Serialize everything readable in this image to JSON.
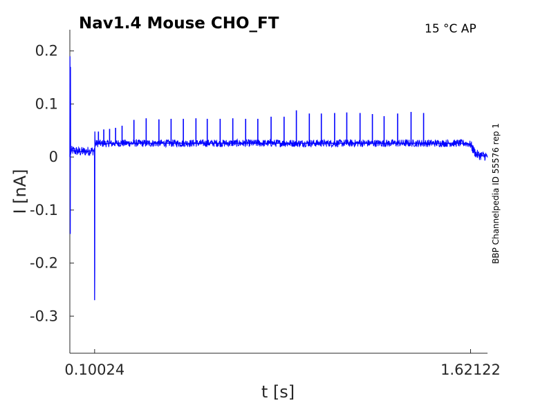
{
  "chart_data": {
    "type": "line",
    "title": "Nav1.4  Mouse  CHO_FT",
    "temperature_label": "15 °C  AP",
    "side_label": "BBP Channelpedia ID 55576 rep 1",
    "xlabel": "t [s]",
    "ylabel": "I [nA]",
    "xlim": [
      0.0,
      1.6898
    ],
    "ylim": [
      -0.37,
      0.24
    ],
    "x_ticks": [
      0.10024,
      1.62122
    ],
    "x_tick_labels": [
      "0.10024",
      "1.62122"
    ],
    "y_ticks": [
      0.2,
      0.1,
      0,
      -0.1,
      -0.2,
      -0.3
    ],
    "y_tick_labels": [
      "0.2",
      "0.1",
      "0",
      "-0.1",
      "-0.2",
      "-0.3"
    ],
    "series": [
      {
        "color": "#0000ff",
        "x": [
          0.0,
          0.0006,
          0.0012,
          0.0018,
          0.0024,
          0.003,
          0.0036,
          0.0042,
          0.012,
          0.045,
          0.0995,
          0.1002,
          0.1006,
          0.101,
          0.1014,
          0.1018,
          0.1022,
          0.1026,
          0.103,
          0.104,
          0.108,
          0.115,
          0.12,
          0.13,
          0.14,
          0.15,
          0.16,
          0.17,
          0.18,
          0.2,
          0.25,
          0.3,
          0.35,
          0.4,
          0.45,
          0.5,
          0.55,
          0.6,
          0.65,
          0.7,
          0.75,
          0.8,
          0.85,
          0.9,
          0.95,
          1.0,
          1.05,
          1.1,
          1.15,
          1.2,
          1.25,
          1.3,
          1.35,
          1.4,
          1.45,
          1.5,
          1.55,
          1.6,
          1.6212,
          1.63,
          1.645,
          1.66,
          1.675,
          1.6898
        ],
        "y": [
          0.0,
          0.19,
          -0.02,
          -0.145,
          0.17,
          0.02,
          0.005,
          0.012,
          0.012,
          0.01,
          0.012,
          -0.27,
          -0.21,
          -0.05,
          0.048,
          0.025,
          0.028,
          0.025,
          0.026,
          0.025,
          0.026,
          0.025,
          0.026,
          0.025,
          0.026,
          0.025,
          0.026,
          0.025,
          0.026,
          0.026,
          0.026,
          0.026,
          0.026,
          0.026,
          0.026,
          0.026,
          0.026,
          0.026,
          0.026,
          0.026,
          0.026,
          0.026,
          0.026,
          0.026,
          0.026,
          0.026,
          0.026,
          0.026,
          0.026,
          0.026,
          0.026,
          0.026,
          0.026,
          0.026,
          0.026,
          0.026,
          0.026,
          0.026,
          0.024,
          0.015,
          0.005,
          0.003,
          0.002,
          0.002
        ]
      }
    ],
    "spikes": {
      "x": [
        0.1156,
        0.1373,
        0.1608,
        0.1851,
        0.2113,
        0.2593,
        0.3088,
        0.3604,
        0.4096,
        0.4592,
        0.5102,
        0.5559,
        0.6081,
        0.6593,
        0.7113,
        0.7605,
        0.8142,
        0.8667,
        0.9165,
        0.9689,
        1.0175,
        1.0712,
        1.1204,
        1.1741,
        1.2241,
        1.2714,
        1.3262,
        1.3805,
        1.4312
      ],
      "y": [
        0.048,
        0.052,
        0.053,
        0.055,
        0.059,
        0.07,
        0.073,
        0.071,
        0.072,
        0.072,
        0.073,
        0.072,
        0.072,
        0.073,
        0.072,
        0.072,
        0.076,
        0.076,
        0.088,
        0.082,
        0.082,
        0.083,
        0.084,
        0.083,
        0.081,
        0.077,
        0.082,
        0.085,
        0.083
      ]
    }
  }
}
